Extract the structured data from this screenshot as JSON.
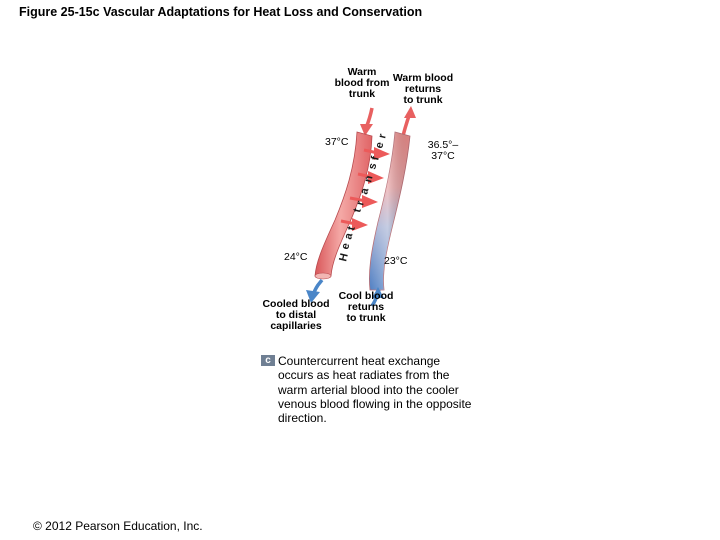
{
  "title": "Figure 25-15c  Vascular Adaptations for Heat Loss and Conservation",
  "labels": {
    "warm_from_trunk": [
      "Warm",
      "blood from",
      "trunk"
    ],
    "warm_returns": [
      "Warm blood",
      "returns",
      "to trunk"
    ],
    "cooled_to_capillaries": [
      "Cooled blood",
      "to distal",
      "capillaries"
    ],
    "cool_returns": [
      "Cool blood",
      "returns",
      "to trunk"
    ]
  },
  "temps": {
    "artery_top": "37°C",
    "vein_top": "36.5°–",
    "vein_top_2": "37°C",
    "artery_bottom": "24°C",
    "vein_bottom": "23°C"
  },
  "heat_transfer": [
    "H",
    "e",
    "a",
    "t",
    "t",
    "r",
    "a",
    "n",
    "s",
    "f",
    "e",
    "r"
  ],
  "caption": {
    "badge": "c",
    "text": "Countercurrent heat exchange occurs as heat radiates from the warm arterial blood into the cooler venous blood flowing in the opposite direction."
  },
  "copyright": "© 2012 Pearson Education, Inc.",
  "colors": {
    "artery": "#e96e6e",
    "artery_light": "#f6b3b0",
    "vein_warm": "#ee8a8a",
    "vein_cool": "#5a86c6",
    "heat_arrow": "#ec5a5a",
    "flow_arrow_red": "#e86060",
    "flow_arrow_blue": "#4a86c8"
  }
}
